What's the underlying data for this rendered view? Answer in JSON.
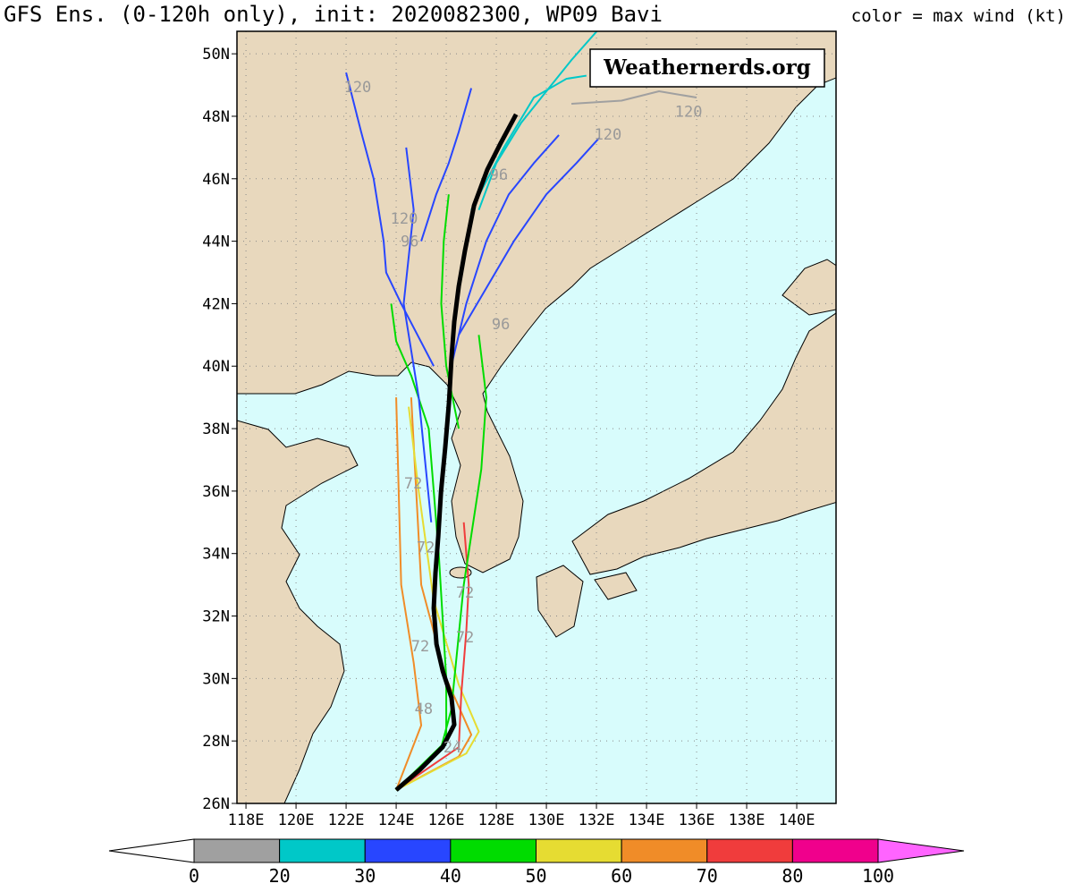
{
  "map": {
    "title": "GFS Ens. (0-120h only), init: 2020082300, WP09 Bavi",
    "legend_title": "color = max wind (kt)",
    "watermark": "Weathernerds.org",
    "xlim": [
      117.64,
      141.57
    ],
    "ylim": [
      26,
      50.72
    ],
    "lon_ticks": [
      {
        "value": 118,
        "label": "118E"
      },
      {
        "value": 120,
        "label": "120E"
      },
      {
        "value": 122,
        "label": "122E"
      },
      {
        "value": 124,
        "label": "124E"
      },
      {
        "value": 126,
        "label": "126E"
      },
      {
        "value": 128,
        "label": "128E"
      },
      {
        "value": 130,
        "label": "130E"
      },
      {
        "value": 132,
        "label": "132E"
      },
      {
        "value": 134,
        "label": "134E"
      },
      {
        "value": 136,
        "label": "136E"
      },
      {
        "value": 138,
        "label": "138E"
      },
      {
        "value": 140,
        "label": "140E"
      }
    ],
    "lat_ticks": [
      {
        "value": 26,
        "label": "26N"
      },
      {
        "value": 28,
        "label": "28N"
      },
      {
        "value": 30,
        "label": "30N"
      },
      {
        "value": 32,
        "label": "32N"
      },
      {
        "value": 34,
        "label": "34N"
      },
      {
        "value": 36,
        "label": "36N"
      },
      {
        "value": 38,
        "label": "38N"
      },
      {
        "value": 40,
        "label": "40N"
      },
      {
        "value": 42,
        "label": "42N"
      },
      {
        "value": 44,
        "label": "44N"
      },
      {
        "value": 46,
        "label": "46N"
      },
      {
        "value": 48,
        "label": "48N"
      },
      {
        "value": 50,
        "label": "50N"
      }
    ],
    "tracks": [
      {
        "color": "#f08c28",
        "lon": [
          124.0,
          126.5,
          127.0,
          126.0,
          125.0,
          124.8,
          124.6
        ],
        "lat": [
          26.43,
          27.5,
          28.2,
          30.0,
          33.0,
          36.0,
          39.0
        ]
      },
      {
        "color": "#e6dc32",
        "lon": [
          124.0,
          126.8,
          127.3,
          126.5,
          125.5,
          124.9,
          124.5
        ],
        "lat": [
          26.43,
          27.6,
          28.3,
          29.8,
          32.5,
          36.0,
          38.7
        ]
      },
      {
        "color": "#f03c3c",
        "lon": [
          124.0,
          126.5,
          126.6,
          126.8,
          126.9,
          126.7
        ],
        "lat": [
          26.43,
          27.8,
          29.5,
          31.5,
          33.0,
          35.0
        ]
      },
      {
        "color": "#f08c28",
        "lon": [
          124.0,
          125.0,
          124.7,
          124.2,
          124.1,
          124.0
        ],
        "lat": [
          26.43,
          28.5,
          30.5,
          33.0,
          36.0,
          39.0
        ]
      },
      {
        "color": "#00dc00",
        "lon": [
          124.0,
          125.8,
          126.2,
          126.7,
          127.4,
          127.6,
          127.3
        ],
        "lat": [
          26.43,
          27.8,
          29.0,
          33.0,
          36.7,
          39.0,
          41.0
        ]
      },
      {
        "color": "#00dc00",
        "lon": [
          124.0,
          126.0,
          126.0,
          125.7,
          125.3,
          124.6,
          124.0,
          123.8
        ],
        "lat": [
          26.43,
          28.0,
          30.0,
          34.0,
          38.0,
          39.7,
          40.8,
          42.0
        ]
      },
      {
        "color": "#00dc00",
        "lon": [
          126.5,
          126.0,
          125.8,
          125.9,
          126.1
        ],
        "lat": [
          38.0,
          40.0,
          42.0,
          44.0,
          45.5
        ]
      },
      {
        "color": "#2846ff",
        "lon": [
          125.4,
          124.9,
          124.3,
          124.7,
          124.4
        ],
        "lat": [
          35.0,
          39.0,
          42.0,
          45.0,
          47.0
        ]
      },
      {
        "color": "#2846ff",
        "lon": [
          125.5,
          124.2,
          123.6,
          123.5,
          123.1,
          122.6,
          122.0
        ],
        "lat": [
          40.0,
          42.0,
          43.0,
          44.0,
          46.0,
          47.5,
          49.4
        ]
      },
      {
        "color": "#2846ff",
        "lon": [
          126.2,
          126.8,
          127.6,
          128.5,
          129.5,
          130.5
        ],
        "lat": [
          40.0,
          42.0,
          44.0,
          45.5,
          46.5,
          47.4
        ]
      },
      {
        "color": "#2846ff",
        "lon": [
          126.5,
          127.6,
          128.7,
          130.0,
          131.2,
          132.1
        ],
        "lat": [
          41.0,
          42.5,
          44.0,
          45.5,
          46.5,
          47.3
        ]
      },
      {
        "color": "#2846ff",
        "lon": [
          125.0,
          125.6,
          126.1,
          126.5,
          127.0
        ],
        "lat": [
          44.0,
          45.5,
          46.5,
          47.5,
          48.9
        ]
      },
      {
        "color": "#00c8c8",
        "lon": [
          127.3,
          128.0,
          129.0,
          130.0,
          131.0,
          132.1
        ],
        "lat": [
          45.0,
          46.5,
          47.8,
          48.8,
          49.8,
          50.8
        ]
      },
      {
        "color": "#00c8c8",
        "lon": [
          127.0,
          128.3,
          129.5,
          130.8,
          131.6
        ],
        "lat": [
          45.0,
          47.0,
          48.6,
          49.2,
          49.3
        ]
      },
      {
        "color": "#a0a0a0",
        "lon": [
          131.0,
          133.0,
          134.5,
          136.0
        ],
        "lat": [
          48.4,
          48.5,
          48.8,
          48.6
        ]
      }
    ],
    "mean_track": {
      "color": "#000000",
      "lon": [
        124.0,
        124.96,
        125.86,
        126.32,
        126.21,
        125.86,
        125.61,
        125.5,
        125.57,
        125.68,
        125.79,
        125.96,
        126.11,
        126.21,
        126.32,
        126.5,
        126.75,
        127.11,
        127.64,
        128.18,
        128.79
      ],
      "lat": [
        26.43,
        27.09,
        27.81,
        28.52,
        29.38,
        30.24,
        31.1,
        32.25,
        33.39,
        34.54,
        35.97,
        37.4,
        38.84,
        40.27,
        41.42,
        42.56,
        43.71,
        45.14,
        46.29,
        47.15,
        48.06
      ]
    },
    "hour_labels": [
      {
        "label": 120,
        "lon": 122.46,
        "lat": 48.95
      },
      {
        "label": 120,
        "lon": 135.68,
        "lat": 48.15
      },
      {
        "label": 120,
        "lon": 132.46,
        "lat": 47.43
      },
      {
        "label": 96,
        "lon": 128.1,
        "lat": 46.14
      },
      {
        "label": 120,
        "lon": 124.32,
        "lat": 44.74
      },
      {
        "label": 96,
        "lon": 124.54,
        "lat": 44.0
      },
      {
        "label": 96,
        "lon": 128.18,
        "lat": 41.36
      },
      {
        "label": 72,
        "lon": 124.68,
        "lat": 36.26
      },
      {
        "label": 72,
        "lon": 125.18,
        "lat": 34.2
      },
      {
        "label": 72,
        "lon": 126.75,
        "lat": 32.76
      },
      {
        "label": 72,
        "lon": 126.75,
        "lat": 31.33
      },
      {
        "label": 72,
        "lon": 124.96,
        "lat": 31.04
      },
      {
        "label": 48,
        "lon": 125.1,
        "lat": 29.04
      },
      {
        "label": 24,
        "lon": 126.25,
        "lat": 27.8
      }
    ],
    "colorbar": {
      "bounds": [
        0,
        20,
        30,
        40,
        50,
        60,
        70,
        80,
        100
      ],
      "colors": [
        "#a0a0a0",
        "#00c8c8",
        "#2846ff",
        "#00dc00",
        "#e6dc32",
        "#f08c28",
        "#f03c3c",
        "#f0008c"
      ],
      "under_color": "#ffffff",
      "over_color": "#ff64ff"
    }
  }
}
